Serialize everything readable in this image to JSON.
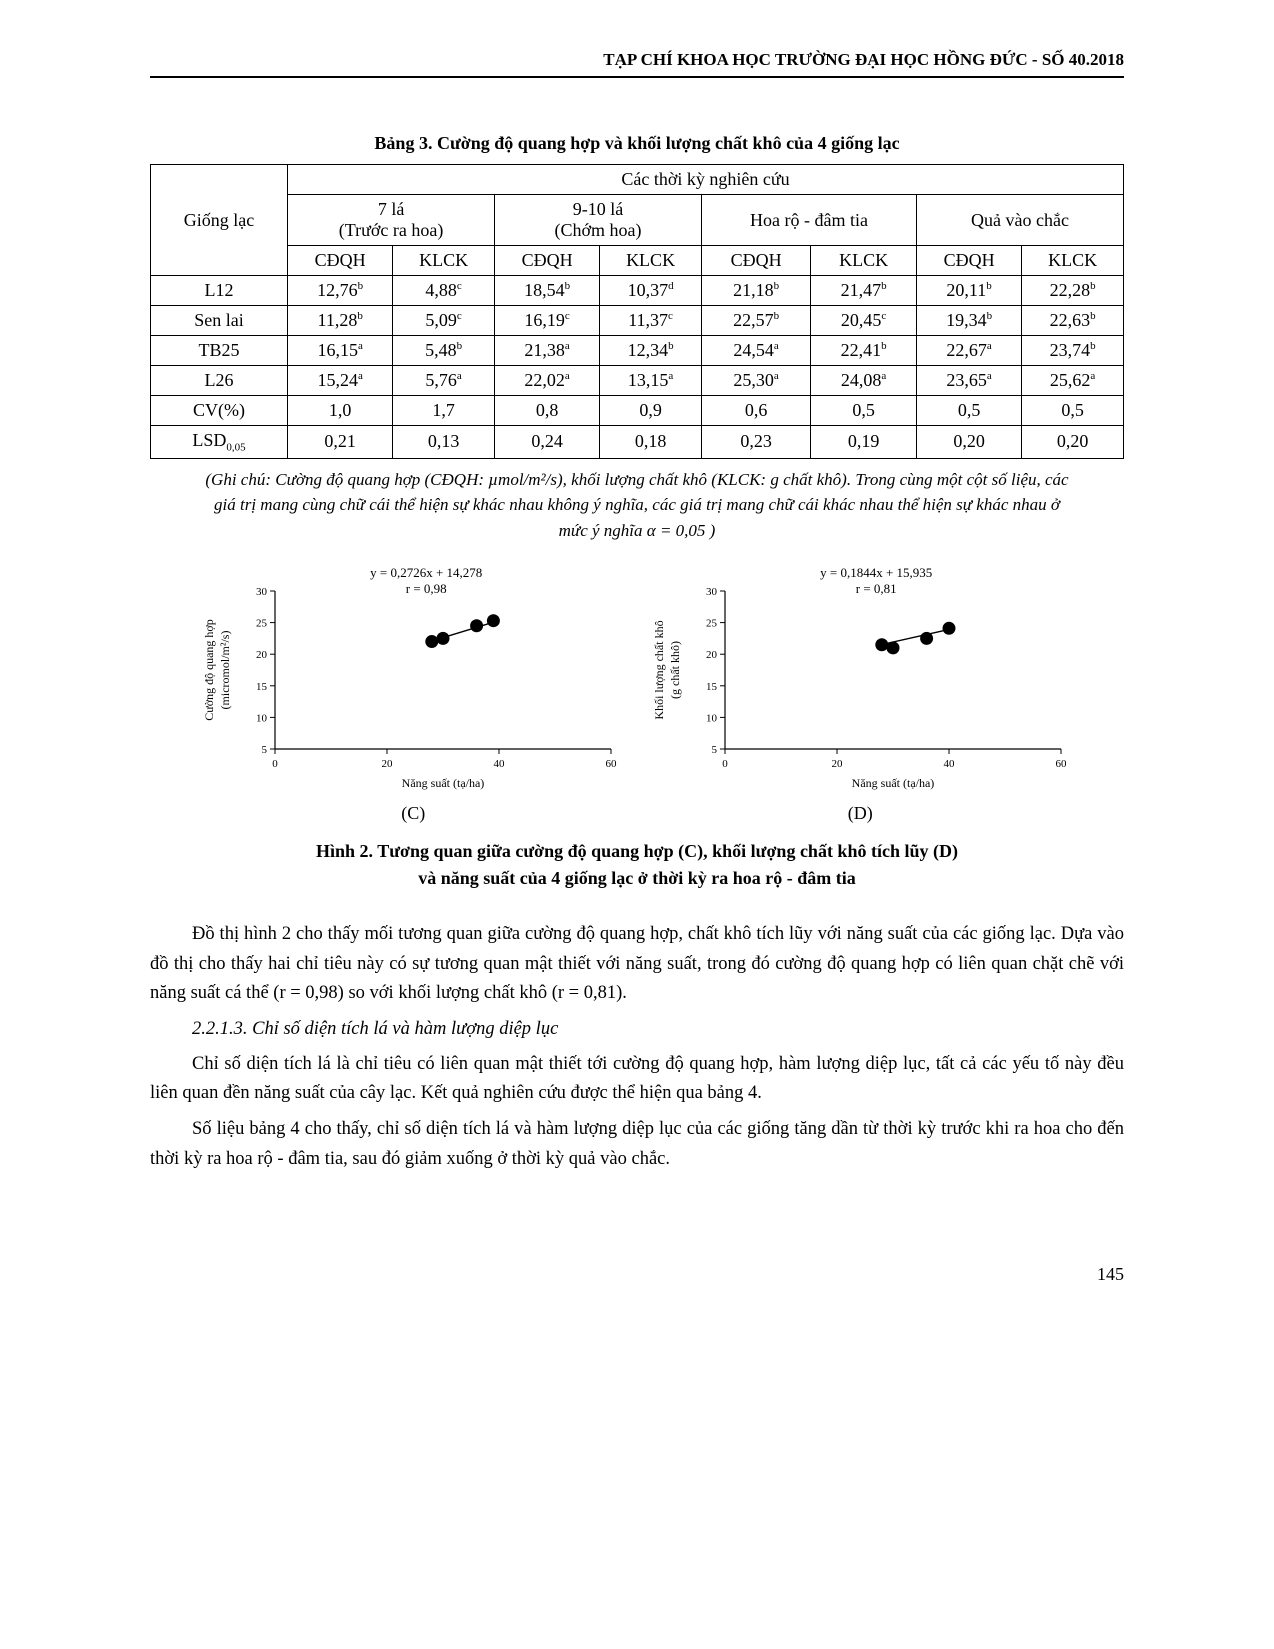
{
  "header": {
    "running": "TẠP CHÍ KHOA HỌC TRƯỜNG ĐẠI HỌC HỒNG ĐỨC - SỐ 40.2018"
  },
  "table3": {
    "title": "Bảng 3. Cường độ quang hợp và khối lượng chất khô của 4 giống lạc",
    "col0": "Giống lạc",
    "header_span": "Các thời kỳ nghiên cứu",
    "stages": [
      {
        "name": "7 lá",
        "sub": "(Trước ra hoa)"
      },
      {
        "name": "9-10 lá",
        "sub": "(Chớm hoa)"
      },
      {
        "name": "Hoa rộ - đâm tia",
        "sub": ""
      },
      {
        "name": "Quả vào chắc",
        "sub": ""
      }
    ],
    "metric_labels": [
      "CĐQH",
      "KLCK"
    ],
    "rows": [
      {
        "label": "L12",
        "cells": [
          "12,76",
          "b",
          "4,88",
          "c",
          "18,54",
          "b",
          "10,37",
          "d",
          "21,18",
          "b",
          "21,47",
          "b",
          "20,11",
          "b",
          "22,28",
          "b"
        ]
      },
      {
        "label": "Sen lai",
        "cells": [
          "11,28",
          "b",
          "5,09",
          "c",
          "16,19",
          "c",
          "11,37",
          "c",
          "22,57",
          "b",
          "20,45",
          "c",
          "19,34",
          "b",
          "22,63",
          "b"
        ]
      },
      {
        "label": "TB25",
        "cells": [
          "16,15",
          "a",
          "5,48",
          "b",
          "21,38",
          "a",
          "12,34",
          "b",
          "24,54",
          "a",
          "22,41",
          "b",
          "22,67",
          "a",
          "23,74",
          "b"
        ]
      },
      {
        "label": "L26",
        "cells": [
          "15,24",
          "a",
          "5,76",
          "a",
          "22,02",
          "a",
          "13,15",
          "a",
          "25,30",
          "a",
          "24,08",
          "a",
          "23,65",
          "a",
          "25,62",
          "a"
        ]
      },
      {
        "label": "CV(%)",
        "cells": [
          "1,0",
          "",
          "1,7",
          "",
          "0,8",
          "",
          "0,9",
          "",
          "0,6",
          "",
          "0,5",
          "",
          "0,5",
          "",
          "0,5",
          ""
        ]
      },
      {
        "label": "LSD",
        "label_sub": "0,05",
        "cells": [
          "0,21",
          "",
          "0,13",
          "",
          "0,24",
          "",
          "0,18",
          "",
          "0,23",
          "",
          "0,19",
          "",
          "0,20",
          "",
          "0,20",
          ""
        ]
      }
    ]
  },
  "table3_note": "(Ghi chú: Cường độ quang hợp (CĐQH: µmol/m²/s), khối lượng chất khô (KLCK: g chất khô). Trong cùng một cột số liệu, các giá trị mang cùng chữ cái thể hiện sự khác nhau không ý nghĩa, các giá trị mang chữ cái khác nhau thể hiện sự khác nhau ở mức ý nghĩa  α = 0,05 )",
  "figure2": {
    "label_C": "(C)",
    "label_D": "(D)",
    "caption_l1": "Hình 2. Tương quan giữa cường độ quang hợp (C), khối lượng chất khô tích lũy (D)",
    "caption_l2": "và năng suất của 4 giống lạc ở thời kỳ ra hoa rộ - đâm tia"
  },
  "chartC": {
    "type": "scatter",
    "equation": "y = 0,2726x + 14,278",
    "r": "r = 0,98",
    "ylabel1": "Cường độ quang hợp",
    "ylabel2": "(micromol/m²/s)",
    "xlabel": "Năng suất (tạ/ha)",
    "xlim": [
      0,
      60
    ],
    "xtick_step": 20,
    "ylim": [
      5,
      30
    ],
    "ytick_step": 5,
    "points": [
      {
        "x": 28,
        "y": 22.0
      },
      {
        "x": 30,
        "y": 22.5
      },
      {
        "x": 36,
        "y": 24.5
      },
      {
        "x": 39,
        "y": 25.3
      }
    ],
    "marker_color": "#000000",
    "marker_radius": 6.5,
    "line_color": "#000000",
    "background_color": "#ffffff",
    "axis_color": "#000000",
    "tick_fontsize": 11
  },
  "chartD": {
    "type": "scatter",
    "equation": "y = 0,1844x + 15,935",
    "r": "r = 0,81",
    "ylabel1": "Khối lượng chất khô",
    "ylabel2": "(g chất khô)",
    "xlabel": "Năng suất (tạ/ha)",
    "xlim": [
      0,
      60
    ],
    "xtick_step": 20,
    "ylim": [
      5,
      30
    ],
    "ytick_step": 5,
    "points": [
      {
        "x": 28,
        "y": 21.5
      },
      {
        "x": 30,
        "y": 21.0
      },
      {
        "x": 36,
        "y": 22.5
      },
      {
        "x": 40,
        "y": 24.1
      }
    ],
    "marker_color": "#000000",
    "marker_radius": 6.5,
    "line_color": "#000000",
    "background_color": "#ffffff",
    "axis_color": "#000000",
    "tick_fontsize": 11
  },
  "paragraphs": {
    "p1": "Đồ thị hình 2 cho thấy mối tương quan giữa cường độ quang hợp, chất khô tích lũy với năng suất của các giống lạc. Dựa vào đồ thị cho thấy hai chỉ tiêu này có sự tương quan mật thiết với năng suất, trong đó cường độ quang hợp có liên quan chặt chẽ với năng suất cá thể (r = 0,98) so với khối lượng chất khô (r = 0,81).",
    "subsection": "2.2.1.3. Chỉ số diện tích lá và hàm lượng diệp lục",
    "p2": "Chỉ số diện tích lá là chỉ tiêu có liên quan mật thiết tới cường độ quang hợp, hàm lượng diệp lục, tất cả các yếu tố này đều liên quan đền năng suất của cây lạc. Kết quả nghiên cứu được thể hiện qua bảng 4.",
    "p3": "Số liệu bảng 4 cho thấy, chỉ số diện tích lá và hàm lượng diệp lục của các giống tăng dần từ thời kỳ trước khi ra hoa cho đến thời kỳ ra hoa rộ - đâm tia, sau đó giảm xuống ở thời kỳ quả vào chắc."
  },
  "page_number": "145"
}
